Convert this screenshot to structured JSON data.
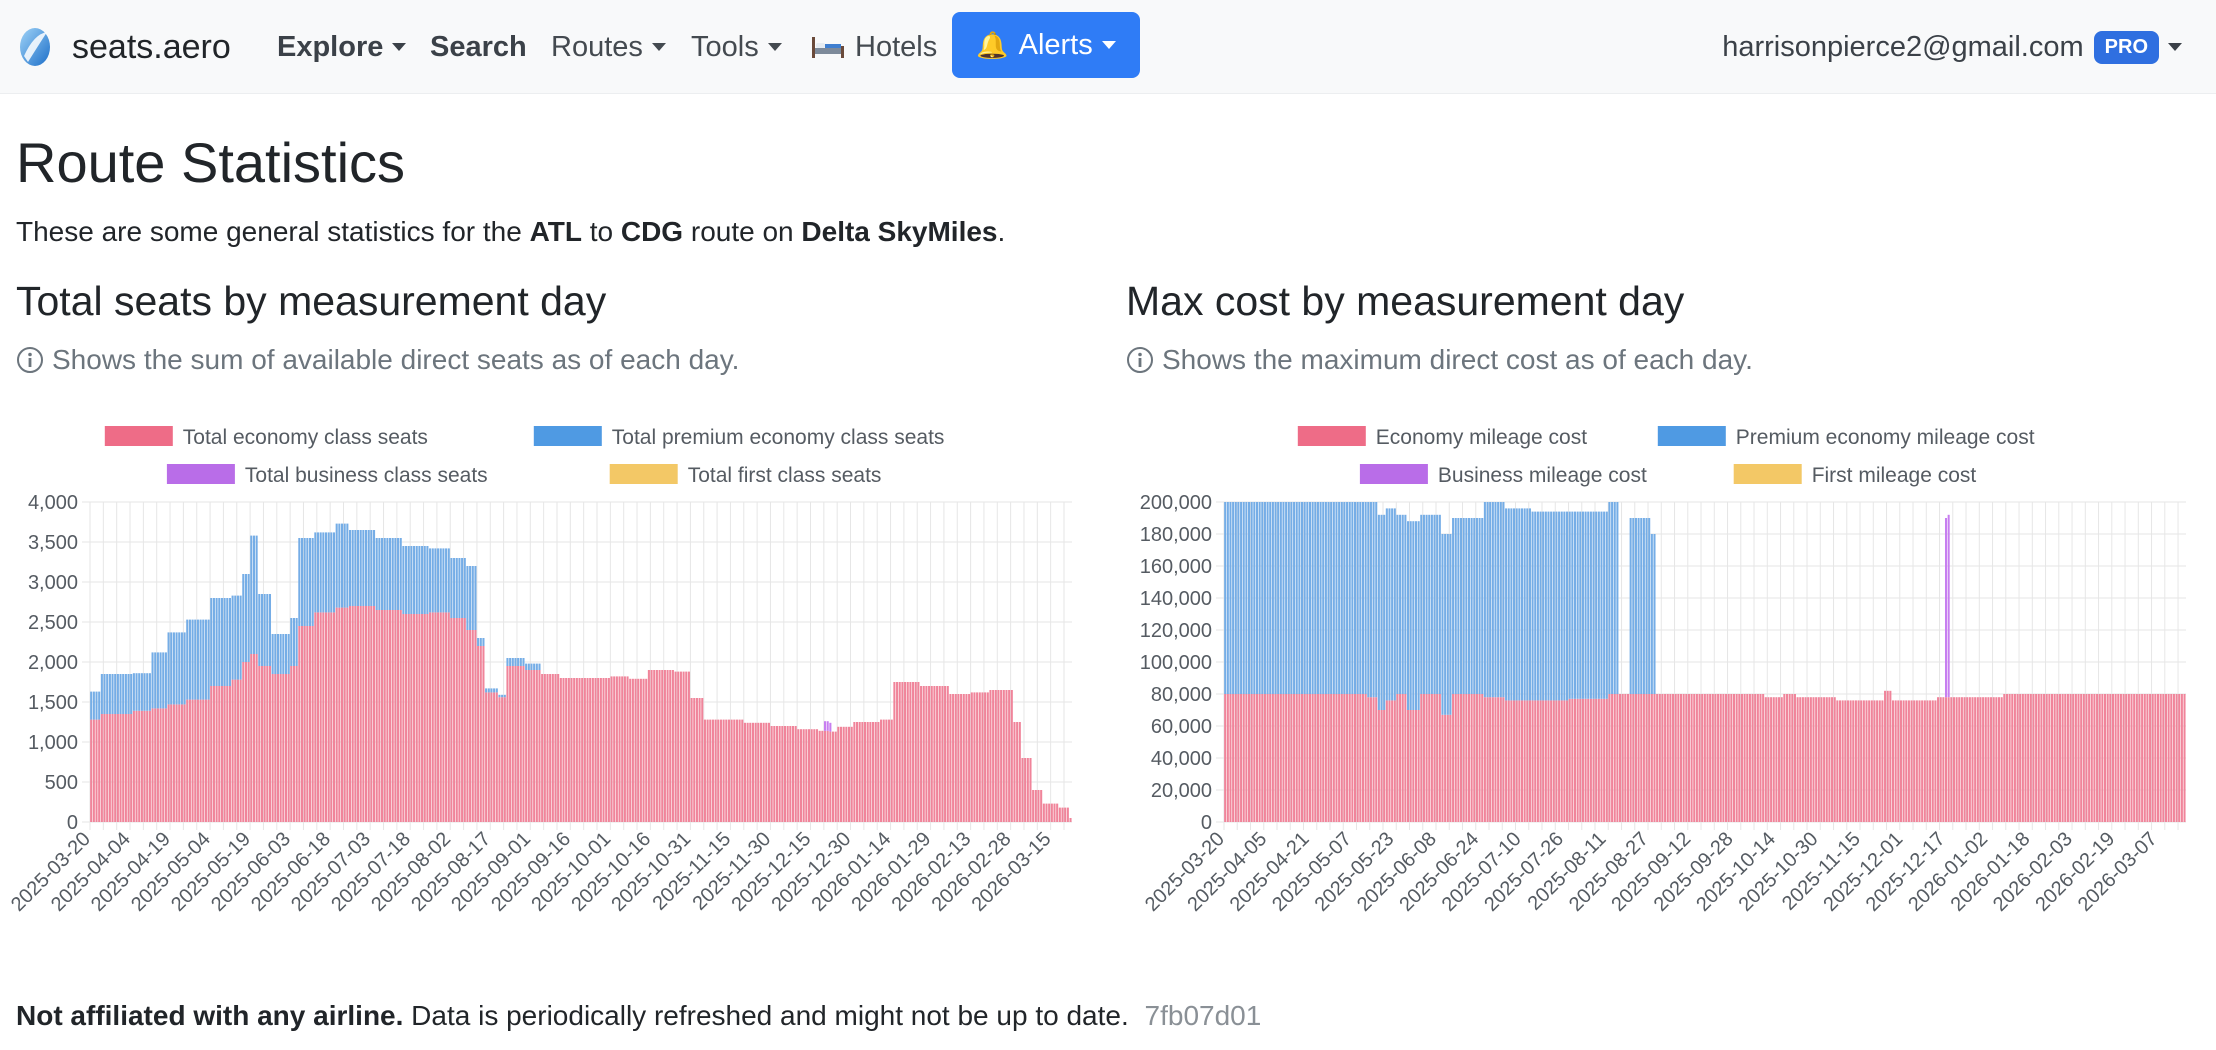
{
  "nav": {
    "brand": "seats.aero",
    "items": [
      "Explore",
      "Search",
      "Routes",
      "Tools",
      "Hotels"
    ],
    "alerts": "Alerts",
    "user_email": "harrisonpierce2@gmail.com",
    "badge": "PRO"
  },
  "page": {
    "title": "Route Statistics",
    "intro_prefix": "These are some general statistics for the ",
    "origin": "ATL",
    "intro_to": " to ",
    "destination": "CDG",
    "intro_on": " route on ",
    "program": "Delta SkyMiles",
    "intro_end": "."
  },
  "footer": {
    "disclaimer_bold": "Not affiliated with any airline.",
    "disclaimer_rest": " Data is periodically refreshed and might not be up to date.",
    "hash": "7fb07d01"
  },
  "colors": {
    "economy": "#f0849a",
    "premium": "#75ade6",
    "business": "#c77ef0",
    "first": "#f5cf6e",
    "economy_legend": "#ee6c87",
    "premium_legend": "#4f9ae3",
    "business_legend": "#b96de8",
    "first_legend": "#f3c866"
  },
  "chart_data": [
    {
      "type": "bar",
      "stacked": true,
      "title": "Total seats by measurement day",
      "subtitle": "Shows the sum of available direct seats as of each day.",
      "legend": [
        "Total economy class seats",
        "Total premium economy class seats",
        "Total business class seats",
        "Total first class seats"
      ],
      "legend_position": "top",
      "x_start": "2025-03-20",
      "x_end": "2026-03-22",
      "x_tick_labels": [
        "2025-03-20",
        "2025-04-04",
        "2025-04-19",
        "2025-05-04",
        "2025-05-19",
        "2025-06-03",
        "2025-06-18",
        "2025-07-03",
        "2025-07-18",
        "2025-08-02",
        "2025-08-17",
        "2025-09-01",
        "2025-09-16",
        "2025-10-01",
        "2025-10-16",
        "2025-10-31",
        "2025-11-15",
        "2025-11-30",
        "2025-12-15",
        "2025-12-30",
        "2026-01-14",
        "2026-01-29",
        "2026-02-13",
        "2026-02-28",
        "2026-03-15"
      ],
      "y_ticks": [
        0,
        500,
        1000,
        1500,
        2000,
        2500,
        3000,
        3500,
        4000
      ],
      "ylim": [
        0,
        4000
      ],
      "grid": true,
      "series": [
        {
          "name": "Total economy class seats",
          "points": [
            [
              "2025-03-20",
              1280
            ],
            [
              "2025-03-24",
              1350
            ],
            [
              "2025-04-05",
              1390
            ],
            [
              "2025-04-12",
              1420
            ],
            [
              "2025-04-18",
              1470
            ],
            [
              "2025-04-25",
              1530
            ],
            [
              "2025-05-04",
              1700
            ],
            [
              "2025-05-12",
              1780
            ],
            [
              "2025-05-16",
              2000
            ],
            [
              "2025-05-19",
              2100
            ],
            [
              "2025-05-22",
              1950
            ],
            [
              "2025-05-27",
              1850
            ],
            [
              "2025-06-03",
              1950
            ],
            [
              "2025-06-06",
              2450
            ],
            [
              "2025-06-12",
              2620
            ],
            [
              "2025-06-20",
              2680
            ],
            [
              "2025-06-25",
              2700
            ],
            [
              "2025-07-05",
              2650
            ],
            [
              "2025-07-15",
              2600
            ],
            [
              "2025-07-25",
              2620
            ],
            [
              "2025-08-02",
              2550
            ],
            [
              "2025-08-08",
              2400
            ],
            [
              "2025-08-12",
              2200
            ],
            [
              "2025-08-15",
              1620
            ],
            [
              "2025-08-20",
              1560
            ],
            [
              "2025-08-23",
              1950
            ],
            [
              "2025-08-30",
              1900
            ],
            [
              "2025-09-05",
              1850
            ],
            [
              "2025-09-12",
              1800
            ],
            [
              "2025-09-25",
              1800
            ],
            [
              "2025-10-01",
              1820
            ],
            [
              "2025-10-08",
              1790
            ],
            [
              "2025-10-15",
              1900
            ],
            [
              "2025-10-25",
              1880
            ],
            [
              "2025-10-31",
              1550
            ],
            [
              "2025-11-05",
              1280
            ],
            [
              "2025-11-20",
              1240
            ],
            [
              "2025-11-30",
              1200
            ],
            [
              "2025-12-10",
              1160
            ],
            [
              "2025-12-18",
              1140
            ],
            [
              "2025-12-22",
              1130
            ],
            [
              "2025-12-25",
              1190
            ],
            [
              "2025-12-31",
              1250
            ],
            [
              "2026-01-10",
              1280
            ],
            [
              "2026-01-15",
              1750
            ],
            [
              "2026-01-25",
              1700
            ],
            [
              "2026-02-05",
              1600
            ],
            [
              "2026-02-13",
              1620
            ],
            [
              "2026-02-20",
              1650
            ],
            [
              "2026-02-28",
              1650
            ],
            [
              "2026-03-01",
              1250
            ],
            [
              "2026-03-04",
              800
            ],
            [
              "2026-03-08",
              400
            ],
            [
              "2026-03-12",
              230
            ],
            [
              "2026-03-18",
              180
            ],
            [
              "2026-03-22",
              50
            ]
          ]
        },
        {
          "name": "Total premium economy class seats",
          "points": [
            [
              "2025-03-20",
              350
            ],
            [
              "2025-03-24",
              500
            ],
            [
              "2025-04-05",
              470
            ],
            [
              "2025-04-12",
              700
            ],
            [
              "2025-04-18",
              900
            ],
            [
              "2025-04-25",
              1000
            ],
            [
              "2025-05-04",
              1100
            ],
            [
              "2025-05-12",
              1050
            ],
            [
              "2025-05-16",
              1100
            ],
            [
              "2025-05-19",
              1480
            ],
            [
              "2025-05-22",
              900
            ],
            [
              "2025-05-27",
              500
            ],
            [
              "2025-06-03",
              600
            ],
            [
              "2025-06-06",
              1100
            ],
            [
              "2025-06-12",
              1000
            ],
            [
              "2025-06-20",
              1050
            ],
            [
              "2025-06-25",
              950
            ],
            [
              "2025-07-05",
              900
            ],
            [
              "2025-07-15",
              850
            ],
            [
              "2025-07-25",
              800
            ],
            [
              "2025-08-02",
              750
            ],
            [
              "2025-08-08",
              800
            ],
            [
              "2025-08-12",
              100
            ],
            [
              "2025-08-15",
              50
            ],
            [
              "2025-08-20",
              30
            ],
            [
              "2025-08-23",
              100
            ],
            [
              "2025-08-30",
              80
            ],
            [
              "2025-09-05",
              0
            ],
            [
              "2025-09-12",
              0
            ],
            [
              "2025-09-25",
              0
            ],
            [
              "2025-10-01",
              0
            ],
            [
              "2025-10-08",
              0
            ],
            [
              "2025-10-15",
              0
            ],
            [
              "2025-10-25",
              0
            ],
            [
              "2025-10-31",
              0
            ],
            [
              "2025-11-05",
              0
            ],
            [
              "2025-11-20",
              0
            ],
            [
              "2025-11-30",
              0
            ],
            [
              "2025-12-10",
              0
            ],
            [
              "2025-12-18",
              0
            ],
            [
              "2025-12-22",
              0
            ],
            [
              "2025-12-25",
              0
            ],
            [
              "2025-12-31",
              0
            ],
            [
              "2026-01-10",
              0
            ],
            [
              "2026-01-15",
              0
            ],
            [
              "2026-01-25",
              0
            ],
            [
              "2026-02-05",
              0
            ],
            [
              "2026-02-13",
              0
            ],
            [
              "2026-02-20",
              0
            ],
            [
              "2026-02-28",
              0
            ],
            [
              "2026-03-01",
              0
            ],
            [
              "2026-03-04",
              0
            ],
            [
              "2026-03-08",
              0
            ],
            [
              "2026-03-12",
              0
            ],
            [
              "2026-03-18",
              0
            ],
            [
              "2026-03-22",
              0
            ]
          ]
        },
        {
          "name": "Total business class seats",
          "points": [
            [
              "2025-12-20",
              120
            ],
            [
              "2025-12-21",
              120
            ],
            [
              "2025-12-22",
              110
            ]
          ]
        },
        {
          "name": "Total first class seats",
          "points": []
        }
      ]
    },
    {
      "type": "bar",
      "stacked": true,
      "title": "Max cost by measurement day",
      "subtitle": "Shows the maximum direct cost as of each day.",
      "legend": [
        "Economy mileage cost",
        "Premium economy mileage cost",
        "Business mileage cost",
        "First mileage cost"
      ],
      "legend_position": "top",
      "x_start": "2025-03-20",
      "x_end": "2026-03-17",
      "x_tick_labels": [
        "2025-03-20",
        "2025-04-05",
        "2025-04-21",
        "2025-05-07",
        "2025-05-23",
        "2025-06-08",
        "2025-06-24",
        "2025-07-10",
        "2025-07-26",
        "2025-08-11",
        "2025-08-27",
        "2025-09-12",
        "2025-09-28",
        "2025-10-14",
        "2025-10-30",
        "2025-11-15",
        "2025-12-01",
        "2025-12-17",
        "2026-01-02",
        "2026-01-18",
        "2026-02-03",
        "2026-02-19",
        "2026-03-07"
      ],
      "y_ticks": [
        0,
        20000,
        40000,
        60000,
        80000,
        100000,
        120000,
        140000,
        160000,
        180000,
        200000
      ],
      "ylim": [
        0,
        200000
      ],
      "grid": true,
      "series": [
        {
          "name": "Economy mileage cost",
          "points": [
            [
              "2025-03-20",
              80000
            ],
            [
              "2025-05-13",
              78000
            ],
            [
              "2025-05-17",
              70000
            ],
            [
              "2025-05-20",
              76000
            ],
            [
              "2025-05-24",
              80000
            ],
            [
              "2025-05-28",
              70000
            ],
            [
              "2025-06-02",
              80000
            ],
            [
              "2025-06-10",
              67000
            ],
            [
              "2025-06-14",
              80000
            ],
            [
              "2025-06-26",
              78000
            ],
            [
              "2025-07-04",
              76000
            ],
            [
              "2025-07-14",
              76000
            ],
            [
              "2025-07-28",
              77000
            ],
            [
              "2025-08-12",
              80000
            ],
            [
              "2025-10-10",
              78000
            ],
            [
              "2025-10-17",
              80000
            ],
            [
              "2025-10-22",
              78000
            ],
            [
              "2025-11-06",
              76000
            ],
            [
              "2025-11-24",
              82000
            ],
            [
              "2025-11-27",
              76000
            ],
            [
              "2025-12-14",
              78000
            ],
            [
              "2026-01-08",
              80000
            ],
            [
              "2026-03-17",
              80000
            ]
          ]
        },
        {
          "name": "Premium economy mileage cost",
          "points": [
            [
              "2025-03-20",
              120000
            ],
            [
              "2025-05-13",
              122000
            ],
            [
              "2025-05-17",
              122000
            ],
            [
              "2025-05-20",
              120000
            ],
            [
              "2025-05-24",
              112000
            ],
            [
              "2025-05-28",
              118000
            ],
            [
              "2025-06-02",
              112000
            ],
            [
              "2025-06-10",
              113000
            ],
            [
              "2025-06-14",
              110000
            ],
            [
              "2025-06-26",
              122000
            ],
            [
              "2025-07-04",
              120000
            ],
            [
              "2025-07-14",
              118000
            ],
            [
              "2025-07-28",
              117000
            ],
            [
              "2025-08-12",
              120000
            ],
            [
              "2025-08-16",
              0
            ],
            [
              "2025-08-20",
              110000
            ],
            [
              "2025-08-28",
              100000
            ],
            [
              "2025-08-30",
              0
            ]
          ]
        },
        {
          "name": "Business mileage cost",
          "points": [
            [
              "2025-12-17",
              112000
            ],
            [
              "2025-12-18",
              114000
            ]
          ]
        },
        {
          "name": "First mileage cost",
          "points": []
        }
      ]
    }
  ]
}
